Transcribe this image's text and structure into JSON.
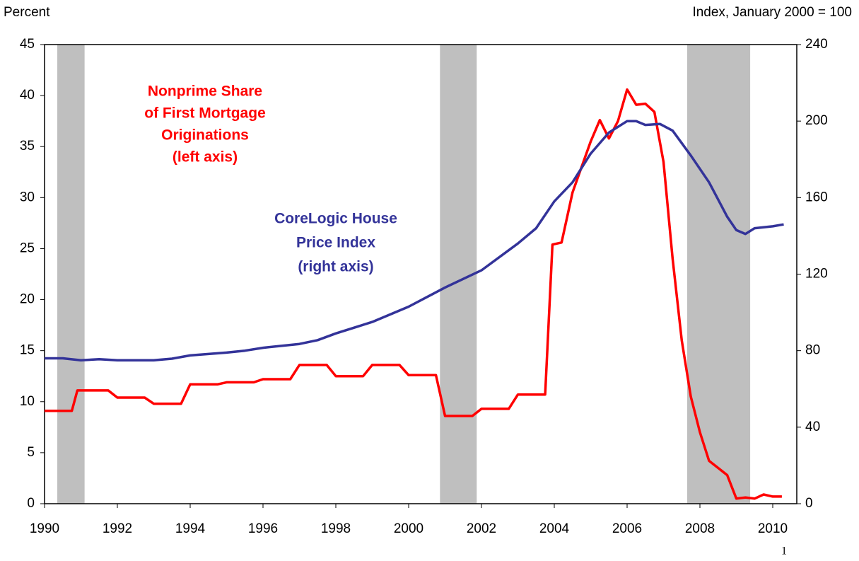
{
  "chart_data": {
    "type": "line",
    "y_label": "Percent",
    "y2_label": "Index, January 2000 = 100",
    "page_number": "1",
    "xlim": [
      1990,
      2010.66
    ],
    "xticks": [
      1990,
      1992,
      1994,
      1996,
      1998,
      2000,
      2002,
      2004,
      2006,
      2008,
      2010
    ],
    "ylim": [
      0,
      45
    ],
    "yticks": [
      0,
      5,
      10,
      15,
      20,
      25,
      30,
      35,
      40,
      45
    ],
    "y2lim": [
      0,
      240
    ],
    "y2ticks": [
      0,
      40,
      80,
      120,
      160,
      200,
      240
    ],
    "recessions": [
      [
        1990.35,
        1991.1
      ],
      [
        2000.86,
        2001.87
      ],
      [
        2007.65,
        2009.38
      ]
    ],
    "recession_color": "#bfbfbf",
    "series": [
      {
        "color": "#ff0000",
        "x": [
          1990,
          1990.75,
          1990.9,
          1991.75,
          1992,
          1992.75,
          1993,
          1993.75,
          1994,
          1994.75,
          1995,
          1995.75,
          1996,
          1996.75,
          1997,
          1997.75,
          1998,
          1998.75,
          1999,
          1999.75,
          2000,
          2000.75,
          2001,
          2001.75,
          2002,
          2002.75,
          2003,
          2003.75,
          2003.95,
          2004.2,
          2004.5,
          2004.75,
          2005,
          2005.25,
          2005.5,
          2005.75,
          2006,
          2006.25,
          2006.5,
          2006.75,
          2007,
          2007.25,
          2007.5,
          2007.75,
          2008,
          2008.25,
          2008.5,
          2008.75,
          2009,
          2009.25,
          2009.5,
          2009.75,
          2010,
          2010.25
        ],
        "values": [
          9.1,
          9.1,
          11.1,
          11.1,
          10.4,
          10.4,
          9.8,
          9.8,
          11.7,
          11.7,
          11.9,
          11.9,
          12.2,
          12.2,
          13.6,
          13.6,
          12.5,
          12.5,
          13.6,
          13.6,
          12.6,
          12.6,
          8.6,
          8.6,
          9.3,
          9.3,
          10.7,
          10.7,
          25.4,
          25.6,
          30.5,
          33,
          35.5,
          37.6,
          35.8,
          37.5,
          40.6,
          39.1,
          39.2,
          38.4,
          33.5,
          24,
          16,
          10.5,
          7,
          4.2,
          3.5,
          2.8,
          0.5,
          0.6,
          0.5,
          0.9,
          0.7,
          0.7
        ]
      },
      {
        "color": "#333399",
        "axis": "y2",
        "x": [
          1990,
          1990.5,
          1991,
          1991.5,
          1992,
          1993,
          1993.5,
          1994,
          1995,
          1995.5,
          1996,
          1997,
          1997.5,
          1998,
          1999,
          2000,
          2000.5,
          2001,
          2002,
          2003,
          2003.5,
          2004,
          2004.5,
          2005,
          2005.5,
          2006,
          2006.25,
          2006.5,
          2006.9,
          2007.25,
          2007.75,
          2008.25,
          2008.75,
          2009,
          2009.25,
          2009.5,
          2010,
          2010.3
        ],
        "values": [
          76,
          76,
          75,
          75.5,
          75,
          75,
          75.8,
          77.5,
          79,
          80,
          81.5,
          83.5,
          85.5,
          89,
          95,
          103,
          108,
          113,
          122,
          136,
          144,
          158,
          168,
          183,
          194,
          200,
          200,
          198,
          198.5,
          195,
          182,
          168,
          150,
          143,
          141,
          144,
          145,
          146
        ]
      }
    ],
    "annotations": [
      {
        "color": "#ff0000",
        "lines": [
          "Nonprime Share",
          "of First Mortgage",
          "Originations",
          "(left axis)"
        ]
      },
      {
        "color": "#333399",
        "lines": [
          "CoreLogic House",
          "Price Index",
          "(right axis)"
        ]
      }
    ]
  }
}
